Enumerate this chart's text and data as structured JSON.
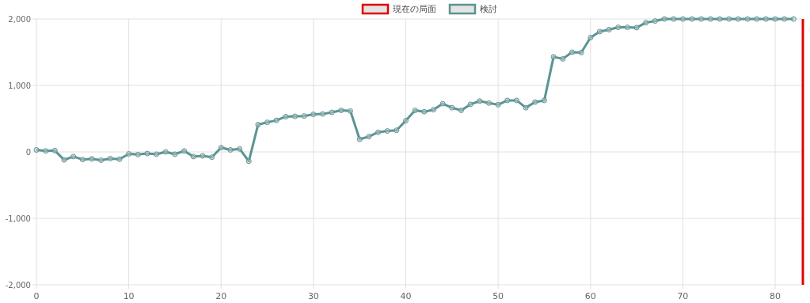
{
  "chart_data": {
    "type": "line",
    "xlim": [
      0,
      83
    ],
    "xticks": [
      0,
      10,
      20,
      30,
      40,
      50,
      60,
      70,
      80
    ],
    "ylim": [
      -2000,
      2000
    ],
    "yticks": [
      {
        "value": -2000,
        "label": "-2,000"
      },
      {
        "value": -1000,
        "label": "-1,000"
      },
      {
        "value": 0,
        "label": "0"
      },
      {
        "value": 1000,
        "label": "1,000"
      },
      {
        "value": 2000,
        "label": "2,000"
      }
    ],
    "grid": true,
    "legend": "top",
    "marker": "circle",
    "ref_lines": [
      {
        "axis": "x",
        "value": 83,
        "label": "現在の局面",
        "color": "#e00000"
      }
    ],
    "series": [
      {
        "name": "検討",
        "color": "#5b9494",
        "x": [
          0,
          1,
          2,
          3,
          4,
          5,
          6,
          7,
          8,
          9,
          10,
          11,
          12,
          13,
          14,
          15,
          16,
          17,
          18,
          19,
          20,
          21,
          22,
          23,
          24,
          25,
          26,
          27,
          28,
          29,
          30,
          31,
          32,
          33,
          34,
          35,
          36,
          37,
          38,
          39,
          40,
          41,
          42,
          43,
          44,
          45,
          46,
          47,
          48,
          49,
          50,
          51,
          52,
          53,
          54,
          55,
          56,
          57,
          58,
          59,
          60,
          61,
          62,
          63,
          64,
          65,
          66,
          67,
          68,
          69,
          70,
          71,
          72,
          73,
          74,
          75,
          76,
          77,
          78,
          79,
          80,
          81,
          82
        ],
        "values": [
          30,
          15,
          20,
          -120,
          -70,
          -115,
          -105,
          -125,
          -100,
          -110,
          -30,
          -40,
          -25,
          -35,
          0,
          -35,
          15,
          -70,
          -60,
          -80,
          65,
          30,
          45,
          -140,
          410,
          445,
          475,
          530,
          535,
          540,
          565,
          570,
          595,
          625,
          615,
          190,
          230,
          295,
          315,
          325,
          470,
          625,
          605,
          635,
          725,
          665,
          625,
          715,
          765,
          735,
          710,
          775,
          775,
          665,
          750,
          775,
          1430,
          1400,
          1500,
          1495,
          1720,
          1810,
          1840,
          1875,
          1875,
          1870,
          1945,
          1970,
          2000,
          2000,
          2000,
          2000,
          2000,
          2000,
          2000,
          2000,
          2000,
          2000,
          2000,
          2000,
          2000,
          2000,
          2000
        ]
      }
    ]
  }
}
